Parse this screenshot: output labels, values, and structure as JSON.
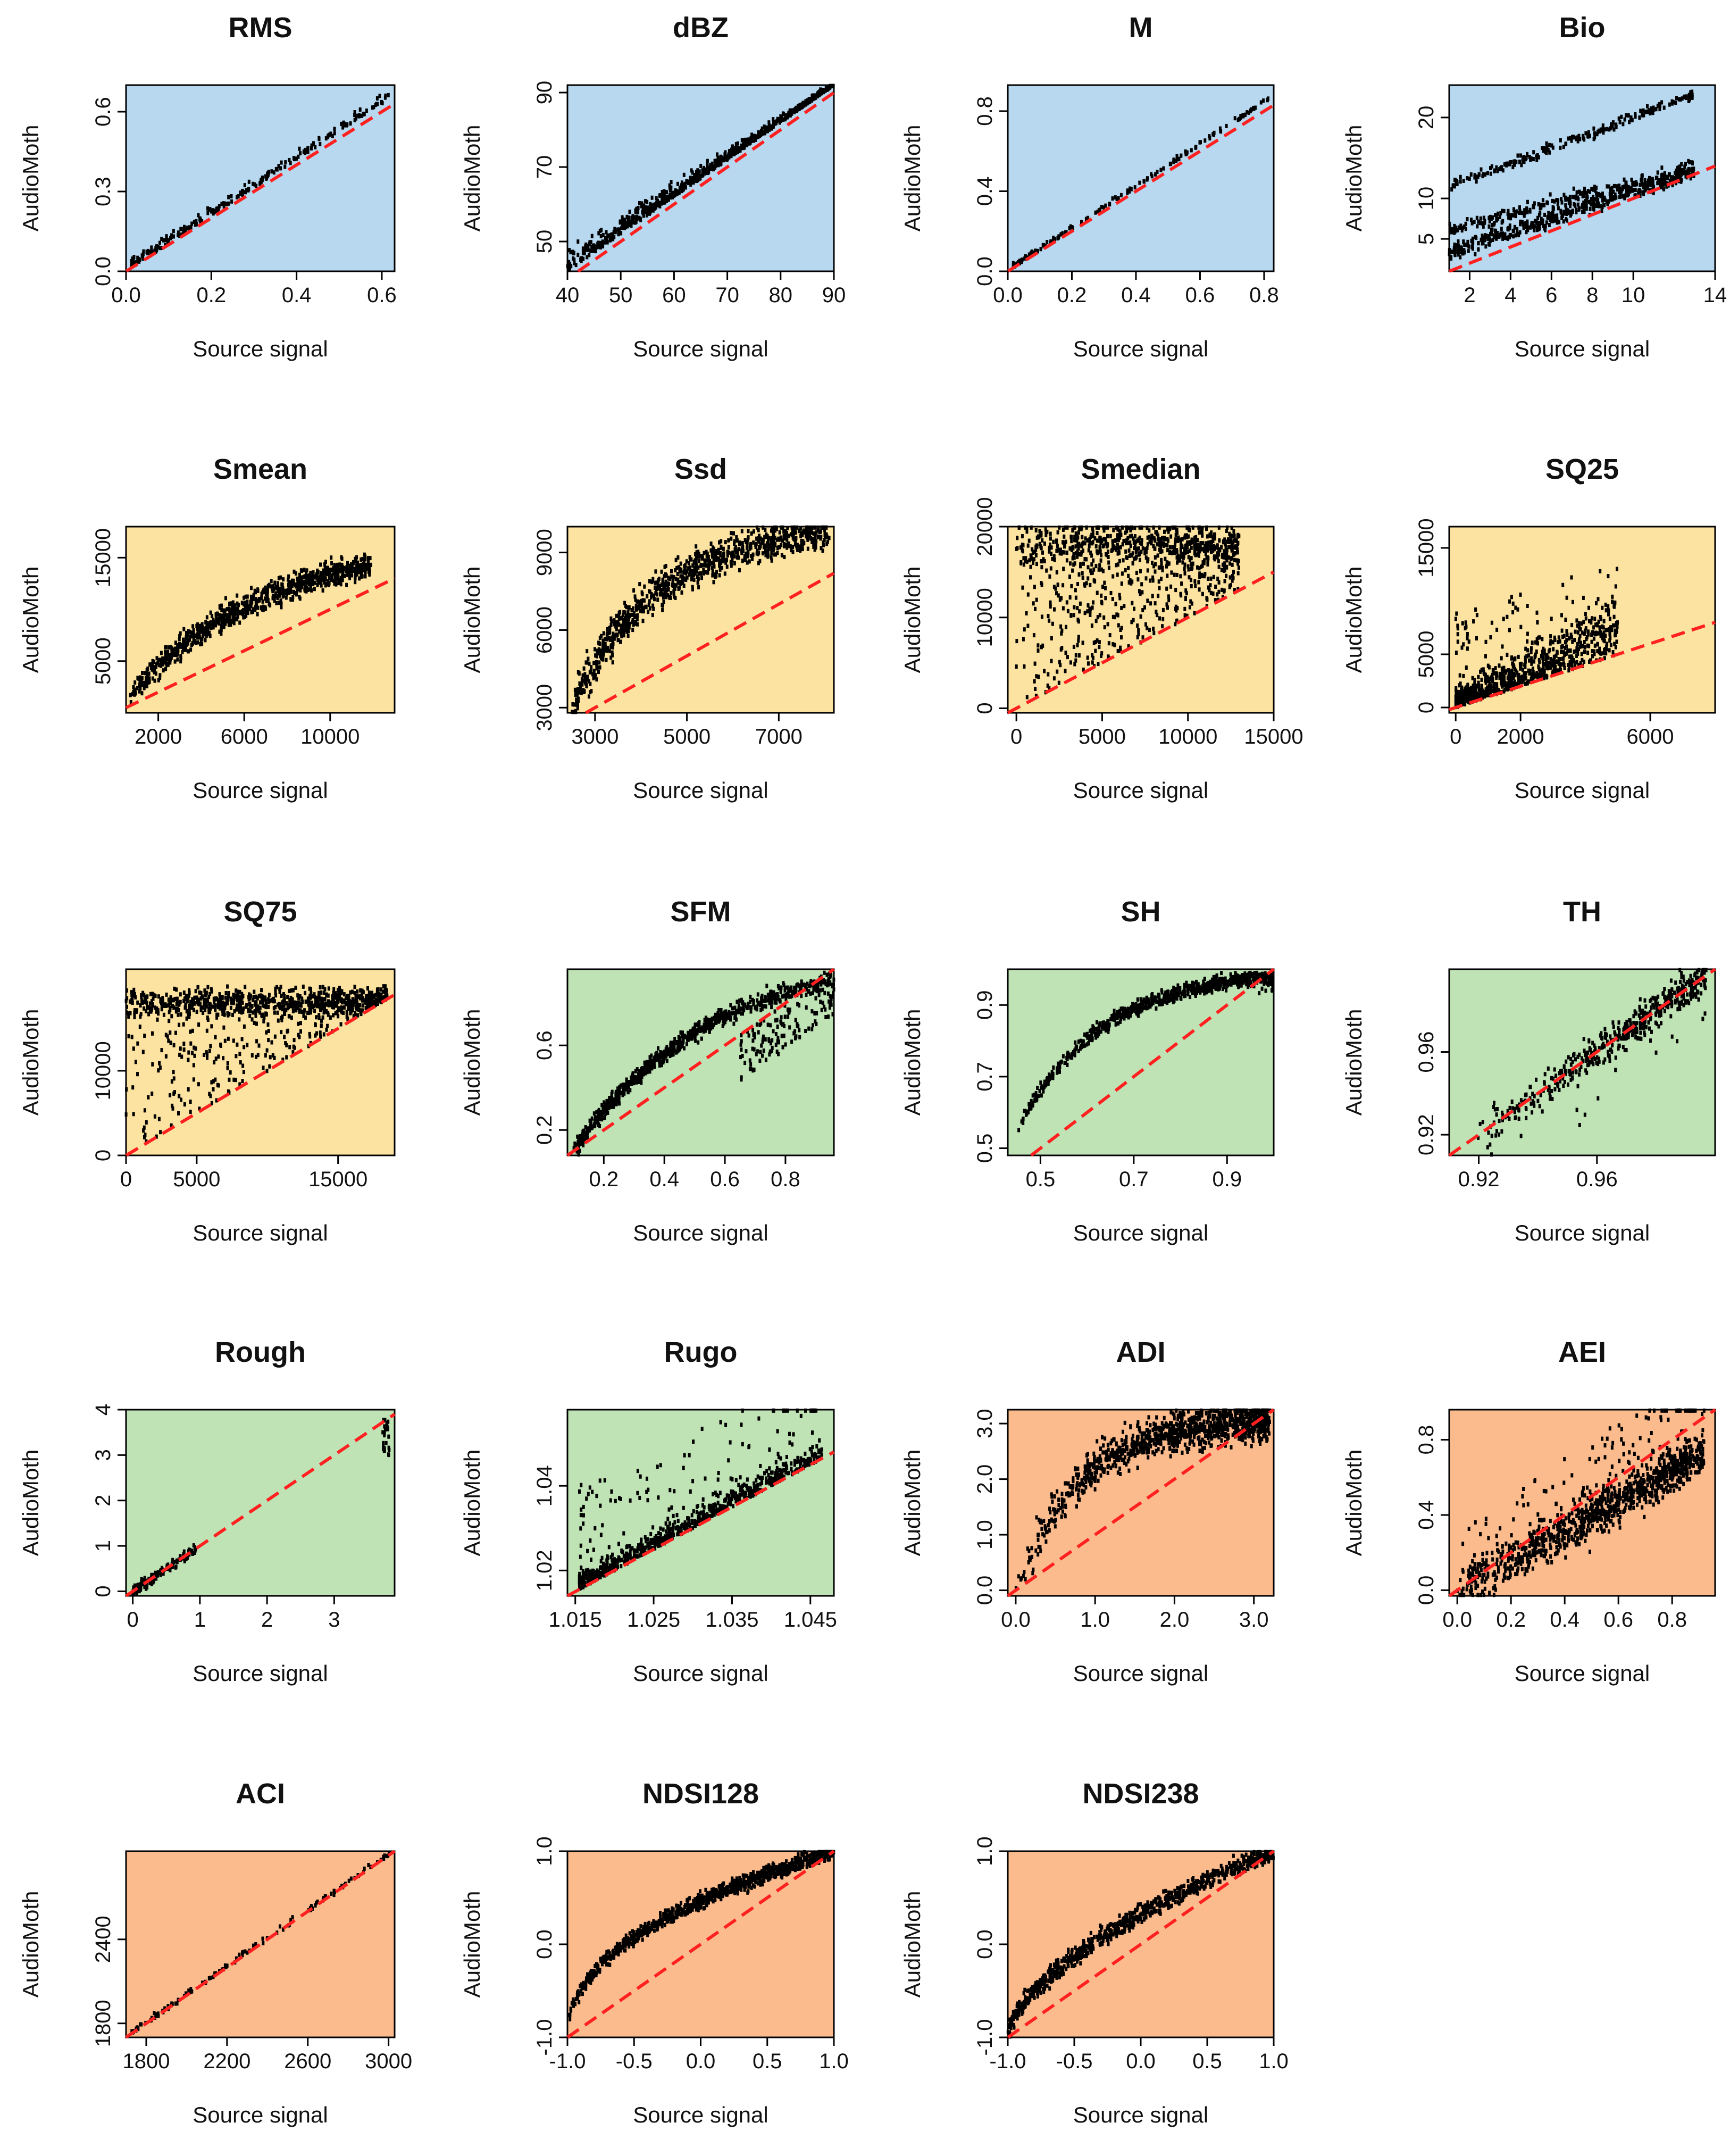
{
  "figure": {
    "x_axis_label": "Source signal",
    "y_axis_label": "AudioMoth"
  },
  "colors": {
    "group_blue": "#b7d8ef",
    "group_yellow": "#fde3a1",
    "group_green": "#bfe3b5",
    "group_orange": "#fcbb8d",
    "points": "#000000",
    "identity_line": "#ff2020"
  },
  "chart_data": [
    {
      "type": "scatter",
      "title": "RMS",
      "group": "blue",
      "xlim": [
        0,
        0.63
      ],
      "ylim": [
        0,
        0.7
      ],
      "xticks": [
        "0.0",
        "0.2",
        "0.4",
        "0.6"
      ],
      "yticks": [
        "0.0",
        "0.3",
        "0.6"
      ],
      "xlabel": "Source signal",
      "ylabel": "AudioMoth",
      "identity_line": true,
      "scatter": {
        "shape": "linear",
        "slope": 1.05,
        "spread": 0.03,
        "n": 240
      }
    },
    {
      "type": "scatter",
      "title": "dBZ",
      "group": "blue",
      "xlim": [
        40,
        90
      ],
      "ylim": [
        42,
        92
      ],
      "xticks": [
        "40",
        "50",
        "60",
        "70",
        "80",
        "90"
      ],
      "yticks": [
        "50",
        "70",
        "90"
      ],
      "xlabel": "Source signal",
      "ylabel": "AudioMoth",
      "identity_line": true,
      "scatter": {
        "shape": "dbz",
        "n": 700
      }
    },
    {
      "type": "scatter",
      "title": "M",
      "group": "blue",
      "xlim": [
        0,
        0.83
      ],
      "ylim": [
        0,
        0.93
      ],
      "xticks": [
        "0.0",
        "0.2",
        "0.4",
        "0.6",
        "0.8"
      ],
      "yticks": [
        "0.0",
        "0.4",
        "0.8"
      ],
      "xlabel": "Source signal",
      "ylabel": "AudioMoth",
      "identity_line": true,
      "scatter": {
        "shape": "linear",
        "slope": 1.05,
        "spread": 0.02,
        "n": 160
      }
    },
    {
      "type": "scatter",
      "title": "Bio",
      "group": "blue",
      "xlim": [
        1,
        14
      ],
      "ylim": [
        1,
        24
      ],
      "xticks": [
        "2",
        "4",
        "6",
        "8",
        "10",
        "14"
      ],
      "yticks": [
        "5",
        "10",
        "20"
      ],
      "xlabel": "Source signal",
      "ylabel": "AudioMoth",
      "identity_line": true,
      "scatter": {
        "shape": "bio",
        "n": 900
      }
    },
    {
      "type": "scatter",
      "title": "Smean",
      "group": "yellow",
      "xlim": [
        500,
        13000
      ],
      "ylim": [
        0,
        18000
      ],
      "xticks": [
        "2000",
        "6000",
        "10000"
      ],
      "yticks": [
        "5000",
        "15000"
      ],
      "xlabel": "Source signal",
      "ylabel": "AudioMoth",
      "identity_line": true,
      "scatter": {
        "shape": "smean",
        "n": 900
      }
    },
    {
      "type": "scatter",
      "title": "Ssd",
      "group": "yellow",
      "xlim": [
        2400,
        8200
      ],
      "ylim": [
        2800,
        10000
      ],
      "xticks": [
        "3000",
        "5000",
        "7000"
      ],
      "yticks": [
        "3000",
        "6000",
        "9000"
      ],
      "xlabel": "Source signal",
      "ylabel": "AudioMoth",
      "identity_line": true,
      "scatter": {
        "shape": "ssd",
        "n": 900
      }
    },
    {
      "type": "scatter",
      "title": "Smedian",
      "group": "yellow",
      "xlim": [
        -500,
        15000
      ],
      "ylim": [
        -500,
        20000
      ],
      "xticks": [
        "0",
        "5000",
        "10000",
        "15000"
      ],
      "yticks": [
        "0",
        "10000",
        "20000"
      ],
      "xlabel": "Source signal",
      "ylabel": "AudioMoth",
      "identity_line": true,
      "scatter": {
        "shape": "smedian",
        "n": 1000
      }
    },
    {
      "type": "scatter",
      "title": "SQ25",
      "group": "yellow",
      "xlim": [
        -200,
        8000
      ],
      "ylim": [
        -500,
        17000
      ],
      "xticks": [
        "0",
        "2000",
        "6000"
      ],
      "yticks": [
        "0",
        "5000",
        "15000"
      ],
      "xlabel": "Source signal",
      "ylabel": "AudioMoth",
      "identity_line": true,
      "scatter": {
        "shape": "sq25",
        "n": 900
      }
    },
    {
      "type": "scatter",
      "title": "SQ75",
      "group": "yellow",
      "xlim": [
        0,
        19000
      ],
      "ylim": [
        0,
        22000
      ],
      "xticks": [
        "0",
        "5000",
        "15000"
      ],
      "yticks": [
        "0",
        "10000"
      ],
      "xlabel": "Source signal",
      "ylabel": "AudioMoth",
      "identity_line": true,
      "scatter": {
        "shape": "sq75",
        "n": 1000
      }
    },
    {
      "type": "scatter",
      "title": "SFM",
      "group": "green",
      "xlim": [
        0.08,
        0.96
      ],
      "ylim": [
        0.08,
        0.96
      ],
      "xticks": [
        "0.2",
        "0.4",
        "0.6",
        "0.8"
      ],
      "yticks": [
        "0.2",
        "0.6"
      ],
      "xlabel": "Source signal",
      "ylabel": "AudioMoth",
      "identity_line": true,
      "scatter": {
        "shape": "sfm",
        "n": 1000
      }
    },
    {
      "type": "scatter",
      "title": "SH",
      "group": "green",
      "xlim": [
        0.43,
        1.0
      ],
      "ylim": [
        0.48,
        1.0
      ],
      "xticks": [
        "0.5",
        "0.7",
        "0.9"
      ],
      "yticks": [
        "0.5",
        "0.7",
        "0.9"
      ],
      "xlabel": "Source signal",
      "ylabel": "AudioMoth",
      "identity_line": true,
      "scatter": {
        "shape": "sh",
        "n": 800
      }
    },
    {
      "type": "scatter",
      "title": "TH",
      "group": "green",
      "xlim": [
        0.91,
        1.0
      ],
      "ylim": [
        0.91,
        1.0
      ],
      "xticks": [
        "0.92",
        "0.96"
      ],
      "yticks": [
        "0.92",
        "0.96"
      ],
      "xlabel": "Source signal",
      "ylabel": "AudioMoth",
      "identity_line": true,
      "scatter": {
        "shape": "th",
        "n": 500
      }
    },
    {
      "type": "scatter",
      "title": "Rough",
      "group": "green",
      "xlim": [
        -0.1,
        3.9
      ],
      "ylim": [
        -0.1,
        4.0
      ],
      "xticks": [
        "0",
        "1",
        "2",
        "3"
      ],
      "yticks": [
        "0",
        "1",
        "2",
        "3",
        "4"
      ],
      "xlabel": "Source signal",
      "ylabel": "AudioMoth",
      "identity_line": true,
      "scatter": {
        "shape": "rough",
        "n": 200
      }
    },
    {
      "type": "scatter",
      "title": "Rugo",
      "group": "green",
      "xlim": [
        1.014,
        1.048
      ],
      "ylim": [
        1.014,
        1.058
      ],
      "xticks": [
        "1.015",
        "1.025",
        "1.035",
        "1.045"
      ],
      "yticks": [
        "1.02",
        "1.04"
      ],
      "xlabel": "Source signal",
      "ylabel": "AudioMoth",
      "identity_line": true,
      "scatter": {
        "shape": "rugo",
        "n": 800
      }
    },
    {
      "type": "scatter",
      "title": "ADI",
      "group": "orange",
      "xlim": [
        -0.1,
        3.25
      ],
      "ylim": [
        -0.1,
        3.25
      ],
      "xticks": [
        "0.0",
        "1.0",
        "2.0",
        "3.0"
      ],
      "yticks": [
        "0.0",
        "1.0",
        "2.0",
        "3.0"
      ],
      "xlabel": "Source signal",
      "ylabel": "AudioMoth",
      "identity_line": true,
      "scatter": {
        "shape": "adi",
        "n": 1100
      }
    },
    {
      "type": "scatter",
      "title": "AEI",
      "group": "orange",
      "xlim": [
        -0.03,
        0.96
      ],
      "ylim": [
        -0.03,
        0.96
      ],
      "xticks": [
        "0.0",
        "0.2",
        "0.4",
        "0.6",
        "0.8"
      ],
      "yticks": [
        "0.0",
        "0.4",
        "0.8"
      ],
      "xlabel": "Source signal",
      "ylabel": "AudioMoth",
      "identity_line": true,
      "scatter": {
        "shape": "aei",
        "n": 1100
      }
    },
    {
      "type": "scatter",
      "title": "ACI",
      "group": "orange",
      "xlim": [
        1700,
        3030
      ],
      "ylim": [
        1700,
        3030
      ],
      "xticks": [
        "1800",
        "2200",
        "2600",
        "3000"
      ],
      "yticks": [
        "1800",
        "2400"
      ],
      "xlabel": "Source signal",
      "ylabel": "AudioMoth",
      "identity_line": true,
      "scatter": {
        "shape": "linear",
        "slope": 1.0,
        "spread": 25,
        "n": 120
      }
    },
    {
      "type": "scatter",
      "title": "NDSI128",
      "group": "orange",
      "xlim": [
        -1.0,
        1.0
      ],
      "ylim": [
        -1.0,
        1.0
      ],
      "xticks": [
        "-1.0",
        "-0.5",
        "0.0",
        "0.5",
        "1.0"
      ],
      "yticks": [
        "-1.0",
        "0.0",
        "1.0"
      ],
      "xlabel": "Source signal",
      "ylabel": "AudioMoth",
      "identity_line": true,
      "scatter": {
        "shape": "ndsi128",
        "n": 1000
      }
    },
    {
      "type": "scatter",
      "title": "NDSI238",
      "group": "orange",
      "xlim": [
        -1.0,
        1.0
      ],
      "ylim": [
        -1.0,
        1.0
      ],
      "xticks": [
        "-1.0",
        "-0.5",
        "0.0",
        "0.5",
        "1.0"
      ],
      "yticks": [
        "-1.0",
        "0.0",
        "1.0"
      ],
      "xlabel": "Source signal",
      "ylabel": "AudioMoth",
      "identity_line": true,
      "scatter": {
        "shape": "ndsi238",
        "n": 800
      }
    }
  ]
}
